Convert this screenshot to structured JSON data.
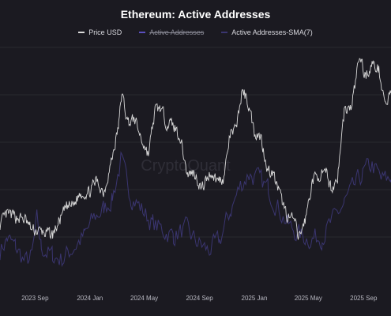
{
  "chart_data": {
    "type": "line",
    "title": "Ethereum: Active Addresses",
    "watermark": "CryptoQuant",
    "legend": [
      {
        "name": "Price USD",
        "color": "#d9d9d9",
        "hidden": false
      },
      {
        "name": "Active Addresses",
        "color": "#5b4fbf",
        "hidden": true
      },
      {
        "name": "Active Addresses-SMA(7)",
        "color": "#3a3570",
        "hidden": false
      }
    ],
    "x_ticks": [
      "2023 Sep",
      "2024 Jan",
      "2024 May",
      "2024 Sep",
      "2025 Jan",
      "2025 May",
      "2025 Sep"
    ],
    "x_range": [
      "2023-06-15",
      "2025-11-01"
    ],
    "series": [
      {
        "name": "Price USD",
        "color": "#d9d9d9",
        "x": [
          "2023-06-15",
          "2023-07-01",
          "2023-07-20",
          "2023-08-10",
          "2023-08-25",
          "2023-09-15",
          "2023-10-10",
          "2023-10-25",
          "2023-11-10",
          "2023-11-25",
          "2023-12-10",
          "2023-12-31",
          "2024-01-15",
          "2024-02-01",
          "2024-02-20",
          "2024-03-05",
          "2024-03-12",
          "2024-03-25",
          "2024-04-10",
          "2024-04-25",
          "2024-05-10",
          "2024-05-25",
          "2024-06-05",
          "2024-06-20",
          "2024-07-05",
          "2024-07-20",
          "2024-08-05",
          "2024-08-20",
          "2024-09-06",
          "2024-09-25",
          "2024-10-10",
          "2024-10-25",
          "2024-11-08",
          "2024-11-20",
          "2024-12-05",
          "2024-12-16",
          "2025-01-01",
          "2025-01-15",
          "2025-02-01",
          "2025-02-10",
          "2025-03-01",
          "2025-03-15",
          "2025-04-01",
          "2025-04-09",
          "2025-04-25",
          "2025-05-10",
          "2025-05-25",
          "2025-06-10",
          "2025-06-22",
          "2025-07-05",
          "2025-07-20",
          "2025-08-05",
          "2025-08-23",
          "2025-09-05",
          "2025-09-20",
          "2025-10-05",
          "2025-10-20",
          "2025-11-01"
        ],
        "values": [
          1750,
          1920,
          1880,
          1830,
          1650,
          1620,
          1570,
          1800,
          2050,
          2080,
          2280,
          2300,
          2500,
          2300,
          2900,
          3450,
          4000,
          3500,
          3550,
          3200,
          2950,
          3700,
          3750,
          3500,
          3450,
          3250,
          2600,
          2650,
          2350,
          2650,
          2500,
          2550,
          3300,
          3350,
          4050,
          3900,
          3350,
          3250,
          2650,
          2650,
          2200,
          1900,
          1800,
          1500,
          1850,
          2500,
          2600,
          2600,
          2350,
          2550,
          3700,
          3750,
          4650,
          4300,
          4500,
          4400,
          3800,
          4000
        ]
      },
      {
        "name": "Active Addresses-SMA(7)",
        "color": "#3a3570",
        "x": [
          "2023-06-15",
          "2023-07-01",
          "2023-07-20",
          "2023-08-10",
          "2023-08-25",
          "2023-09-05",
          "2023-09-15",
          "2023-10-10",
          "2023-11-01",
          "2023-11-25",
          "2023-12-20",
          "2024-01-10",
          "2024-02-01",
          "2024-02-20",
          "2024-03-10",
          "2024-04-01",
          "2024-04-25",
          "2024-05-20",
          "2024-06-10",
          "2024-07-05",
          "2024-08-01",
          "2024-08-25",
          "2024-09-20",
          "2024-10-15",
          "2024-11-10",
          "2024-12-01",
          "2024-12-20",
          "2025-01-10",
          "2025-02-01",
          "2025-02-25",
          "2025-03-20",
          "2025-04-15",
          "2025-05-10",
          "2025-06-01",
          "2025-06-25",
          "2025-07-20",
          "2025-08-10",
          "2025-08-30",
          "2025-09-20",
          "2025-10-10",
          "2025-11-01"
        ],
        "values": [
          420,
          460,
          430,
          380,
          400,
          520,
          430,
          400,
          390,
          430,
          470,
          530,
          560,
          600,
          720,
          610,
          560,
          510,
          490,
          470,
          490,
          450,
          420,
          450,
          560,
          640,
          680,
          660,
          630,
          560,
          500,
          470,
          460,
          470,
          520,
          580,
          630,
          680,
          710,
          660,
          660
        ]
      }
    ]
  }
}
